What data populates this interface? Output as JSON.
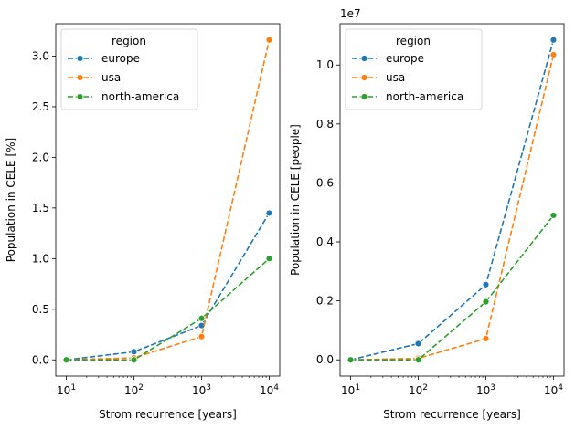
{
  "chart_data": [
    {
      "type": "line",
      "xscale": "log",
      "x": [
        10,
        100,
        1000,
        10000
      ],
      "xticks": [
        10,
        100,
        1000,
        10000
      ],
      "xtick_labels": [
        "10^1",
        "10^2",
        "10^3",
        "10^4"
      ],
      "xlabel": "Strom recurrence [years]",
      "ylabel": "Population in CELE [%]",
      "ylim": [
        -0.16,
        3.32
      ],
      "yticks": [
        0.0,
        0.5,
        1.0,
        1.5,
        2.0,
        2.5,
        3.0
      ],
      "ytick_labels": [
        "0.0",
        "0.5",
        "1.0",
        "1.5",
        "2.0",
        "2.5",
        "3.0"
      ],
      "offset_text": "",
      "grid": false,
      "legend": {
        "title": "region",
        "placement": "top-left"
      },
      "series": [
        {
          "name": "europe",
          "color": "#1f77b4",
          "values": [
            0.0,
            0.08,
            0.34,
            1.45
          ]
        },
        {
          "name": "usa",
          "color": "#ff7f0e",
          "values": [
            0.0,
            0.02,
            0.23,
            3.16
          ]
        },
        {
          "name": "north-america",
          "color": "#2ca02c",
          "values": [
            0.0,
            0.0,
            0.41,
            1.0
          ]
        }
      ]
    },
    {
      "type": "line",
      "xscale": "log",
      "x": [
        10,
        100,
        1000,
        10000
      ],
      "xticks": [
        10,
        100,
        1000,
        10000
      ],
      "xtick_labels": [
        "10^1",
        "10^2",
        "10^3",
        "10^4"
      ],
      "xlabel": "Strom recurrence [years]",
      "ylabel": "Population in CELE [people]",
      "ylim": [
        -0.055,
        1.14
      ],
      "yticks": [
        0.0,
        0.2,
        0.4,
        0.6,
        0.8,
        1.0
      ],
      "ytick_labels": [
        "0.0",
        "0.2",
        "0.4",
        "0.6",
        "0.8",
        "1.0"
      ],
      "offset_text": "1e7",
      "grid": false,
      "legend": {
        "title": "region",
        "placement": "top-left"
      },
      "series": [
        {
          "name": "europe",
          "color": "#1f77b4",
          "values": [
            0.0,
            0.055,
            0.255,
            1.085
          ]
        },
        {
          "name": "usa",
          "color": "#ff7f0e",
          "values": [
            0.0,
            0.005,
            0.072,
            1.035
          ]
        },
        {
          "name": "north-america",
          "color": "#2ca02c",
          "values": [
            0.0,
            0.0,
            0.197,
            0.49
          ]
        }
      ]
    }
  ]
}
